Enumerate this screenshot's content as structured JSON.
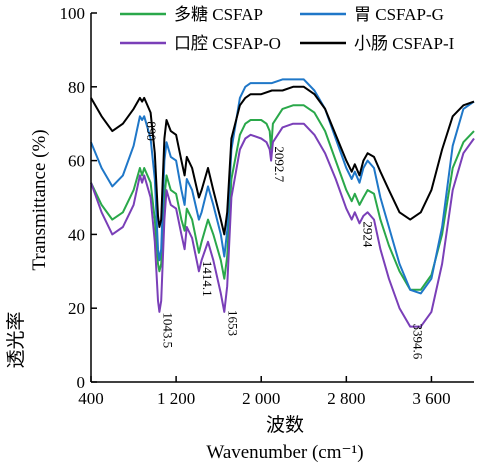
{
  "chart_data": {
    "type": "line",
    "xlabel_cn": "波数",
    "xlabel": "Wavenumber (cm⁻¹)",
    "ylabel_cn": "透光率",
    "ylabel": "Transmittance (%)",
    "xlim": [
      400,
      4000
    ],
    "ylim": [
      0,
      100
    ],
    "x_ticks": [
      400,
      1200,
      2000,
      2800,
      3600
    ],
    "x_tick_labels": [
      "400",
      "1 200",
      "2 000",
      "2 800",
      "3 600"
    ],
    "y_ticks": [
      0,
      20,
      40,
      60,
      80,
      100
    ],
    "y_tick_labels": [
      "0",
      "20",
      "40",
      "60",
      "80",
      "100"
    ],
    "legend_position": "top",
    "series": [
      {
        "name": "多糖 CSFAP",
        "color": "#2aa84a",
        "points": [
          [
            400,
            54
          ],
          [
            500,
            48
          ],
          [
            600,
            44
          ],
          [
            700,
            46
          ],
          [
            800,
            52
          ],
          [
            860,
            58
          ],
          [
            880,
            56
          ],
          [
            900,
            58
          ],
          [
            960,
            54
          ],
          [
            1000,
            44
          ],
          [
            1030,
            32
          ],
          [
            1043,
            30
          ],
          [
            1060,
            32
          ],
          [
            1090,
            50
          ],
          [
            1110,
            56
          ],
          [
            1150,
            52
          ],
          [
            1200,
            51
          ],
          [
            1250,
            44
          ],
          [
            1280,
            41
          ],
          [
            1300,
            47
          ],
          [
            1350,
            44
          ],
          [
            1414,
            35
          ],
          [
            1440,
            38
          ],
          [
            1500,
            44
          ],
          [
            1550,
            40
          ],
          [
            1620,
            33
          ],
          [
            1653,
            28
          ],
          [
            1680,
            34
          ],
          [
            1720,
            55
          ],
          [
            1800,
            67
          ],
          [
            1850,
            70
          ],
          [
            1900,
            71
          ],
          [
            2000,
            71
          ],
          [
            2050,
            70
          ],
          [
            2080,
            68
          ],
          [
            2093,
            63
          ],
          [
            2110,
            70
          ],
          [
            2200,
            74
          ],
          [
            2300,
            75
          ],
          [
            2400,
            75
          ],
          [
            2500,
            73
          ],
          [
            2600,
            68
          ],
          [
            2700,
            60
          ],
          [
            2800,
            52
          ],
          [
            2850,
            49
          ],
          [
            2880,
            51
          ],
          [
            2924,
            48
          ],
          [
            2960,
            50
          ],
          [
            3000,
            52
          ],
          [
            3060,
            51
          ],
          [
            3120,
            44
          ],
          [
            3200,
            37
          ],
          [
            3300,
            30
          ],
          [
            3400,
            25
          ],
          [
            3500,
            25
          ],
          [
            3600,
            29
          ],
          [
            3700,
            40
          ],
          [
            3800,
            58
          ],
          [
            3900,
            65
          ],
          [
            4000,
            68
          ]
        ]
      },
      {
        "name": "胃 CSFAP-G",
        "color": "#1f77c8",
        "points": [
          [
            400,
            65
          ],
          [
            500,
            58
          ],
          [
            600,
            53
          ],
          [
            700,
            56
          ],
          [
            800,
            64
          ],
          [
            860,
            72
          ],
          [
            880,
            71
          ],
          [
            900,
            72
          ],
          [
            960,
            66
          ],
          [
            1000,
            55
          ],
          [
            1030,
            36
          ],
          [
            1043,
            33
          ],
          [
            1060,
            36
          ],
          [
            1090,
            60
          ],
          [
            1110,
            65
          ],
          [
            1150,
            61
          ],
          [
            1200,
            60
          ],
          [
            1250,
            52
          ],
          [
            1280,
            48
          ],
          [
            1300,
            55
          ],
          [
            1350,
            52
          ],
          [
            1414,
            44
          ],
          [
            1440,
            46
          ],
          [
            1500,
            53
          ],
          [
            1550,
            48
          ],
          [
            1620,
            40
          ],
          [
            1653,
            34
          ],
          [
            1680,
            41
          ],
          [
            1720,
            63
          ],
          [
            1800,
            77
          ],
          [
            1850,
            80
          ],
          [
            1900,
            81
          ],
          [
            2000,
            81
          ],
          [
            2100,
            81
          ],
          [
            2200,
            82
          ],
          [
            2300,
            82
          ],
          [
            2400,
            82
          ],
          [
            2500,
            79
          ],
          [
            2600,
            74
          ],
          [
            2700,
            66
          ],
          [
            2800,
            58
          ],
          [
            2850,
            55
          ],
          [
            2880,
            57
          ],
          [
            2924,
            54
          ],
          [
            2960,
            58
          ],
          [
            3000,
            60
          ],
          [
            3060,
            58
          ],
          [
            3120,
            50
          ],
          [
            3200,
            42
          ],
          [
            3300,
            32
          ],
          [
            3400,
            25
          ],
          [
            3500,
            24
          ],
          [
            3600,
            28
          ],
          [
            3700,
            42
          ],
          [
            3800,
            64
          ],
          [
            3900,
            74
          ],
          [
            4000,
            76
          ]
        ]
      },
      {
        "name": "口腔 CSFAP-O",
        "color": "#7a3fb8",
        "points": [
          [
            400,
            54
          ],
          [
            500,
            46
          ],
          [
            600,
            40
          ],
          [
            700,
            42
          ],
          [
            800,
            48
          ],
          [
            860,
            56
          ],
          [
            880,
            54
          ],
          [
            900,
            56
          ],
          [
            960,
            50
          ],
          [
            1000,
            38
          ],
          [
            1030,
            22
          ],
          [
            1043,
            19
          ],
          [
            1060,
            22
          ],
          [
            1090,
            44
          ],
          [
            1110,
            52
          ],
          [
            1150,
            48
          ],
          [
            1200,
            47
          ],
          [
            1250,
            40
          ],
          [
            1280,
            36
          ],
          [
            1300,
            42
          ],
          [
            1350,
            39
          ],
          [
            1414,
            30
          ],
          [
            1440,
            33
          ],
          [
            1500,
            38
          ],
          [
            1550,
            33
          ],
          [
            1620,
            24
          ],
          [
            1653,
            19
          ],
          [
            1680,
            26
          ],
          [
            1720,
            50
          ],
          [
            1800,
            63
          ],
          [
            1850,
            66
          ],
          [
            1900,
            67
          ],
          [
            2000,
            66
          ],
          [
            2050,
            65
          ],
          [
            2080,
            63
          ],
          [
            2093,
            60
          ],
          [
            2110,
            65
          ],
          [
            2200,
            69
          ],
          [
            2300,
            70
          ],
          [
            2400,
            70
          ],
          [
            2500,
            67
          ],
          [
            2600,
            62
          ],
          [
            2700,
            55
          ],
          [
            2800,
            47
          ],
          [
            2850,
            44
          ],
          [
            2880,
            46
          ],
          [
            2924,
            43
          ],
          [
            2960,
            45
          ],
          [
            3000,
            46
          ],
          [
            3060,
            44
          ],
          [
            3120,
            36
          ],
          [
            3200,
            28
          ],
          [
            3300,
            20
          ],
          [
            3400,
            15
          ],
          [
            3500,
            15
          ],
          [
            3600,
            19
          ],
          [
            3700,
            32
          ],
          [
            3800,
            52
          ],
          [
            3900,
            62
          ],
          [
            4000,
            66
          ]
        ]
      },
      {
        "name": "小肠 CSFAP-I",
        "color": "#000000",
        "points": [
          [
            400,
            77
          ],
          [
            500,
            72
          ],
          [
            600,
            68
          ],
          [
            700,
            70
          ],
          [
            800,
            74
          ],
          [
            860,
            77
          ],
          [
            880,
            76
          ],
          [
            900,
            77
          ],
          [
            960,
            73
          ],
          [
            1000,
            62
          ],
          [
            1030,
            45
          ],
          [
            1043,
            42
          ],
          [
            1060,
            44
          ],
          [
            1090,
            66
          ],
          [
            1110,
            71
          ],
          [
            1150,
            68
          ],
          [
            1200,
            67
          ],
          [
            1250,
            60
          ],
          [
            1280,
            56
          ],
          [
            1300,
            61
          ],
          [
            1350,
            58
          ],
          [
            1414,
            50
          ],
          [
            1440,
            52
          ],
          [
            1500,
            58
          ],
          [
            1550,
            52
          ],
          [
            1620,
            44
          ],
          [
            1653,
            40
          ],
          [
            1680,
            46
          ],
          [
            1720,
            66
          ],
          [
            1800,
            75
          ],
          [
            1850,
            77
          ],
          [
            1900,
            78
          ],
          [
            2000,
            78
          ],
          [
            2100,
            79
          ],
          [
            2200,
            79
          ],
          [
            2300,
            80
          ],
          [
            2400,
            80
          ],
          [
            2500,
            78
          ],
          [
            2600,
            74
          ],
          [
            2700,
            67
          ],
          [
            2800,
            60
          ],
          [
            2850,
            57
          ],
          [
            2880,
            59
          ],
          [
            2924,
            56
          ],
          [
            2960,
            60
          ],
          [
            3000,
            62
          ],
          [
            3060,
            61
          ],
          [
            3120,
            57
          ],
          [
            3200,
            52
          ],
          [
            3300,
            46
          ],
          [
            3400,
            44
          ],
          [
            3500,
            46
          ],
          [
            3600,
            52
          ],
          [
            3700,
            63
          ],
          [
            3800,
            72
          ],
          [
            3900,
            75
          ],
          [
            4000,
            76
          ]
        ]
      }
    ],
    "annotations": [
      {
        "text": "890",
        "x": 890,
        "y": 68
      },
      {
        "text": "1043.5",
        "x": 1043,
        "y": 14
      },
      {
        "text": "1414.1",
        "x": 1414,
        "y": 28
      },
      {
        "text": "1653",
        "x": 1653,
        "y": 16
      },
      {
        "text": "2092.7",
        "x": 2093,
        "y": 59
      },
      {
        "text": "2924",
        "x": 2924,
        "y": 40
      },
      {
        "text": "3394.6",
        "x": 3394,
        "y": 11
      }
    ]
  }
}
